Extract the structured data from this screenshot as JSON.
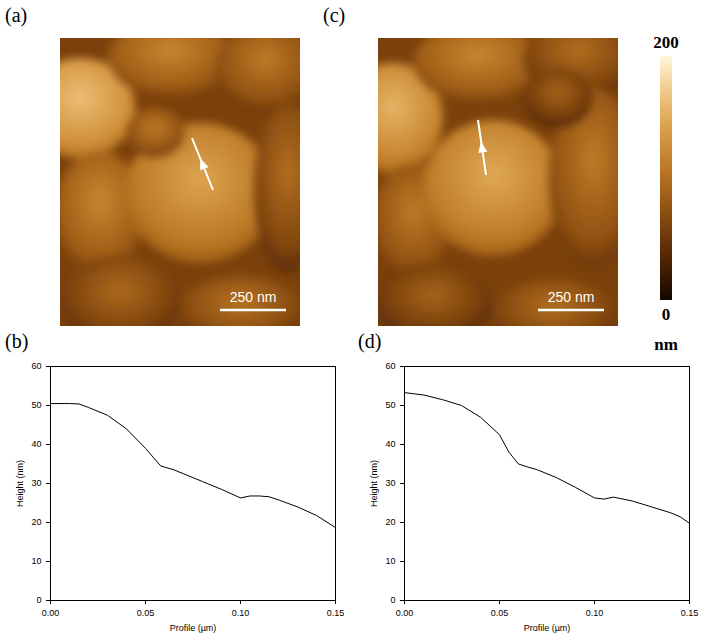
{
  "images": [
    {
      "panel_label": "(a)",
      "scale_bar": "250 nm"
    },
    {
      "panel_label": "(c)",
      "scale_bar": "250 nm"
    }
  ],
  "colorbar": {
    "range": [
      0,
      200
    ],
    "ticks": [
      0,
      200
    ],
    "label": "nm"
  },
  "chart_data": [
    {
      "panel_label": "(b)",
      "type": "line",
      "x_label": "Profile (µm)",
      "y_label": "Height (nm)",
      "x": [
        0,
        0.01,
        0.015,
        0.02,
        0.03,
        0.04,
        0.05,
        0.058,
        0.065,
        0.07,
        0.08,
        0.09,
        0.1,
        0.105,
        0.11,
        0.115,
        0.12,
        0.13,
        0.14,
        0.15
      ],
      "values": [
        50.5,
        50.5,
        50.4,
        49.5,
        47.5,
        44,
        39,
        34.5,
        33.5,
        32.5,
        30.5,
        28.5,
        26.3,
        26.8,
        26.8,
        26.6,
        25.8,
        24,
        21.8,
        18.7
      ],
      "color": "#000000",
      "xlim": [
        0,
        0.15
      ],
      "xticks": [
        {
          "value": 0,
          "label": "0.00"
        },
        {
          "value": 0.05,
          "label": "0.05"
        },
        {
          "value": 0.1,
          "label": "0.10"
        },
        {
          "value": 0.15,
          "label": "0.15"
        }
      ],
      "ylim": [
        0,
        60
      ],
      "yticks": [
        0,
        10,
        20,
        30,
        40,
        50,
        60
      ],
      "grid": false
    },
    {
      "panel_label": "(d)",
      "type": "line",
      "x_label": "Profile (µm)",
      "y_label": "Height (nm)",
      "x": [
        0,
        0.01,
        0.02,
        0.03,
        0.04,
        0.05,
        0.055,
        0.06,
        0.065,
        0.07,
        0.08,
        0.09,
        0.1,
        0.105,
        0.11,
        0.12,
        0.13,
        0.14,
        0.145,
        0.15
      ],
      "values": [
        53.3,
        52.7,
        51.5,
        50,
        47,
        42.5,
        38,
        35,
        34.2,
        33.5,
        31.5,
        29,
        26.3,
        26,
        26.5,
        25.5,
        24,
        22.5,
        21.5,
        19.8
      ],
      "color": "#000000",
      "xlim": [
        0,
        0.15
      ],
      "xticks": [
        {
          "value": 0,
          "label": "0.00"
        },
        {
          "value": 0.05,
          "label": "0.05"
        },
        {
          "value": 0.1,
          "label": "0.10"
        },
        {
          "value": 0.15,
          "label": "0.15"
        }
      ],
      "ylim": [
        0,
        60
      ],
      "yticks": [
        0,
        10,
        20,
        30,
        40,
        50,
        60
      ],
      "grid": false
    }
  ]
}
